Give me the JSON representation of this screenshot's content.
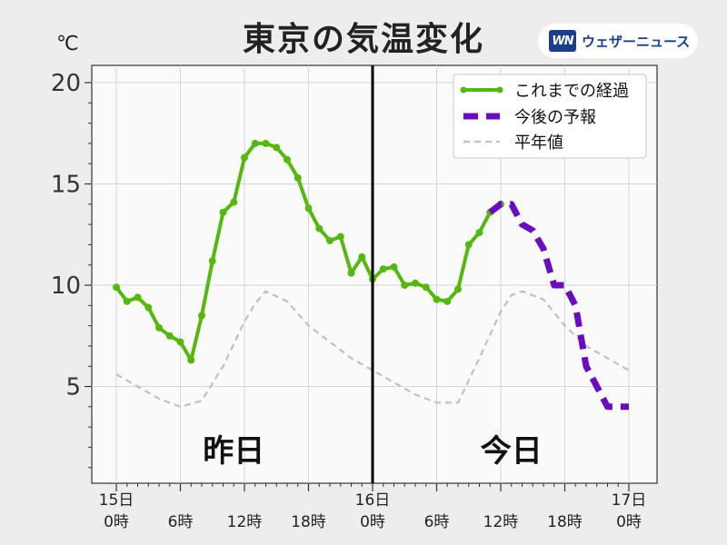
{
  "header": {
    "title": "東京の気温変化",
    "unit": "℃",
    "logo_mark": "WN",
    "logo_text": "ウェザーニュース"
  },
  "chart_data": {
    "type": "line",
    "title": "東京の気温変化",
    "ylabel": "℃",
    "xlim": [
      0,
      48
    ],
    "ylim": [
      0,
      21
    ],
    "grid": true,
    "legend_position": "top-right",
    "yticks": [
      5,
      10,
      15,
      20
    ],
    "xticks": [
      {
        "x": 0,
        "label": [
          "15日",
          "0時"
        ]
      },
      {
        "x": 6,
        "label": [
          "",
          "6時"
        ]
      },
      {
        "x": 12,
        "label": [
          "",
          "12時"
        ]
      },
      {
        "x": 18,
        "label": [
          "",
          "18時"
        ]
      },
      {
        "x": 24,
        "label": [
          "16日",
          "0時"
        ]
      },
      {
        "x": 30,
        "label": [
          "",
          "6時"
        ]
      },
      {
        "x": 36,
        "label": [
          "",
          "12時"
        ]
      },
      {
        "x": 42,
        "label": [
          "",
          "18時"
        ]
      },
      {
        "x": 48,
        "label": [
          "17日",
          "0時"
        ]
      }
    ],
    "day_divider_x": 24,
    "annotations": [
      {
        "x": 11,
        "y": 1.2,
        "text": "昨日"
      },
      {
        "x": 37,
        "y": 1.2,
        "text": "今日"
      }
    ],
    "colors": {
      "observed": "#55b80f",
      "forecast": "#6a0dbd",
      "normal": "#c0c0c0",
      "divider": "#000000"
    },
    "series": [
      {
        "name": "これまでの経過",
        "style": "solid-markers",
        "x": [
          0,
          1,
          2,
          3,
          4,
          5,
          6,
          7,
          8,
          9,
          10,
          11,
          12,
          13,
          14,
          15,
          16,
          17,
          18,
          19,
          20,
          21,
          22,
          23,
          24,
          25,
          26,
          27,
          28,
          29,
          30,
          31,
          32,
          33,
          34,
          35,
          36
        ],
        "y": [
          9.9,
          9.2,
          9.4,
          8.9,
          7.9,
          7.5,
          7.2,
          6.3,
          8.5,
          11.2,
          13.6,
          14.1,
          16.3,
          17.0,
          17.0,
          16.8,
          16.2,
          15.3,
          13.8,
          12.8,
          12.2,
          12.4,
          10.6,
          11.4,
          10.3,
          10.8,
          10.9,
          10.0,
          10.1,
          9.9,
          9.3,
          9.2,
          9.8,
          12.0,
          12.6,
          13.6,
          14.0
        ]
      },
      {
        "name": "今後の予報",
        "style": "dashed-thick",
        "x": [
          35,
          36,
          37,
          38,
          39,
          40,
          41,
          42,
          43,
          44,
          45,
          46,
          47,
          48
        ],
        "y": [
          13.6,
          14.0,
          14.0,
          13.0,
          12.7,
          11.8,
          10.0,
          10.0,
          9.0,
          6.0,
          5.0,
          4.0,
          4.0,
          4.0
        ]
      },
      {
        "name": "平年値",
        "style": "dashed-thin",
        "x": [
          0,
          2,
          4,
          6,
          8,
          10,
          12,
          13,
          14,
          16,
          18,
          20,
          22,
          24,
          26,
          28,
          30,
          32,
          34,
          36,
          37,
          38,
          40,
          42,
          44,
          46,
          48
        ],
        "y": [
          5.6,
          5.0,
          4.4,
          4.0,
          4.3,
          6.0,
          8.2,
          9.1,
          9.7,
          9.2,
          8.0,
          7.2,
          6.4,
          5.8,
          5.2,
          4.6,
          4.2,
          4.2,
          6.4,
          8.7,
          9.5,
          9.7,
          9.3,
          8.0,
          7.0,
          6.4,
          5.8
        ]
      }
    ]
  }
}
